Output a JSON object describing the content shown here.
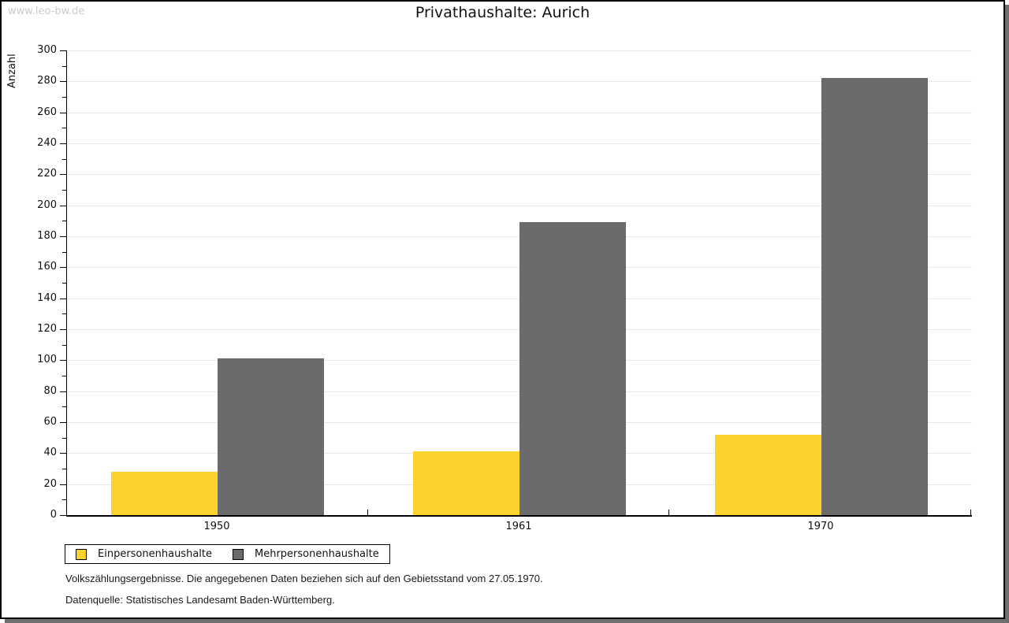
{
  "watermark": "www.leo-bw.de",
  "title": "Privathaushalte: Aurich",
  "chart_data": {
    "type": "bar",
    "categories": [
      "1950",
      "1961",
      "1970"
    ],
    "series": [
      {
        "name": "Einpersonenhaushalte",
        "color": "#FCD32E",
        "values": [
          28,
          41,
          52
        ]
      },
      {
        "name": "Mehrpersonenhaushalte",
        "color": "#6B6B6B",
        "values": [
          101,
          189,
          282
        ]
      }
    ],
    "ylabel": "Anzahl",
    "ylim": [
      0,
      300
    ],
    "ytick_step": 20,
    "yminor_step": 10,
    "grid": true,
    "gridline_color": "#e8e8e8",
    "legend_position": "bottom-left"
  },
  "footer": {
    "line1": "Volkszählungsergebnisse. Die angegebenen Daten beziehen sich auf den Gebietsstand vom 27.05.1970.",
    "line2": "Datenquelle: Statistisches Landesamt Baden-Württemberg."
  }
}
